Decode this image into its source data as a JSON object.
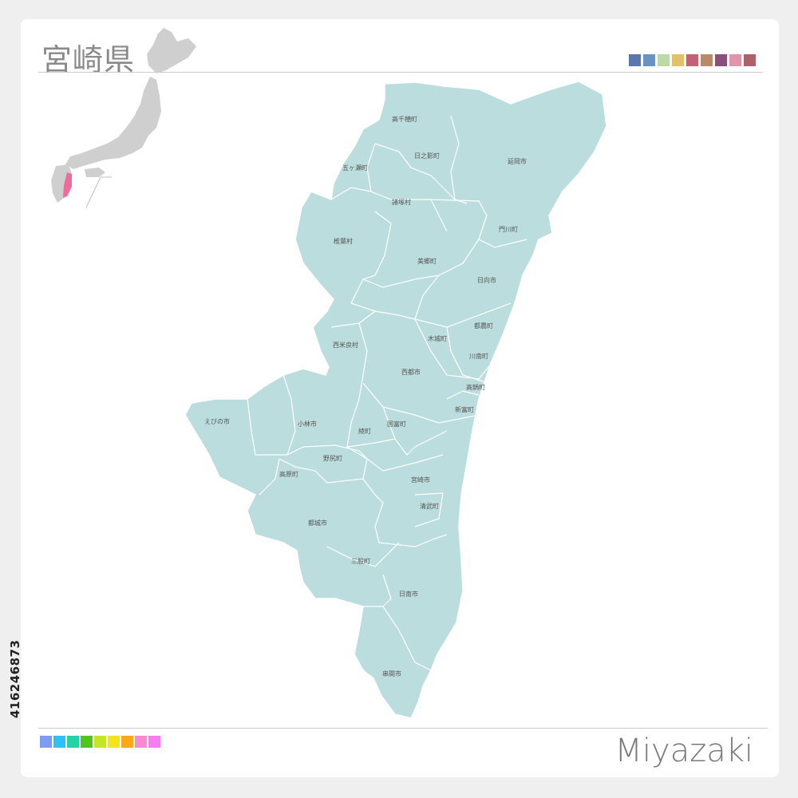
{
  "header": {
    "title": "宮崎県",
    "swatches": [
      "#5b76ae",
      "#6b93c0",
      "#bcd9a6",
      "#e3c16b",
      "#c46073",
      "#b98a6a",
      "#8b4f7e",
      "#e394ad",
      "#b06068"
    ]
  },
  "footer": {
    "title": "Miyazaki",
    "swatches": [
      "#7f9cf5",
      "#2ec1f4",
      "#22d3a6",
      "#52c41a",
      "#c4e624",
      "#f5e31b",
      "#f8a81a",
      "#f98ad0",
      "#f27ef0"
    ]
  },
  "side_id": "416246873",
  "map": {
    "fill_color": "#bcdddd",
    "border_color": "#ffffff",
    "inset_fill": "#cfcfcf",
    "highlight_color": "#f06a9a",
    "municipalities": [
      {
        "name": "高千穂町"
      },
      {
        "name": "日之影町"
      },
      {
        "name": "延岡市"
      },
      {
        "name": "五ヶ瀬町"
      },
      {
        "name": "諸塚村"
      },
      {
        "name": "門川町"
      },
      {
        "name": "椎葉村"
      },
      {
        "name": "美郷町"
      },
      {
        "name": "日向市"
      },
      {
        "name": "都農町"
      },
      {
        "name": "木城町"
      },
      {
        "name": "西米良村"
      },
      {
        "name": "川南町"
      },
      {
        "name": "西都市"
      },
      {
        "name": "高鍋町"
      },
      {
        "name": "えびの市"
      },
      {
        "name": "新富町"
      },
      {
        "name": "小林市"
      },
      {
        "name": "綾町"
      },
      {
        "name": "国富町"
      },
      {
        "name": "野尻町"
      },
      {
        "name": "高原町"
      },
      {
        "name": "宮崎市"
      },
      {
        "name": "清武町"
      },
      {
        "name": "都城市"
      },
      {
        "name": "三股町"
      },
      {
        "name": "日南市"
      },
      {
        "name": "串間市"
      }
    ]
  }
}
